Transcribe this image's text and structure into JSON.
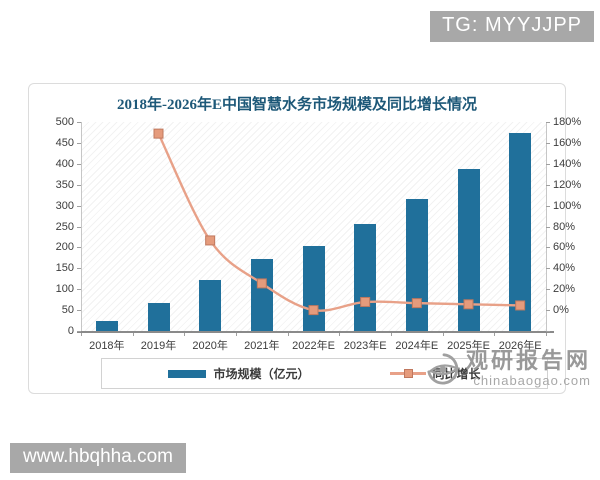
{
  "badges": {
    "tg": "TG: MYYJJPP",
    "site": "www.hbqhha.com"
  },
  "watermark": {
    "name": "观研报告网",
    "url": "chinabaogao.com"
  },
  "chart_data": {
    "type": "bar+line",
    "title": "2018年-2026年E中国智慧水务市场规模及同比增长情况",
    "categories": [
      "2018年",
      "2019年",
      "2020年",
      "2021年",
      "2022年E",
      "2023年E",
      "2024年E",
      "2025年E",
      "2026年E"
    ],
    "series": [
      {
        "name": "市场规模（亿元）",
        "type": "bar",
        "axis": "left",
        "color": "#20709b",
        "values": [
          25,
          68,
          122,
          172,
          203,
          255,
          316,
          388,
          473
        ]
      },
      {
        "name": "同比增长",
        "type": "line",
        "axis": "right",
        "color": "#e8a188",
        "unit": "%",
        "values": [
          null,
          170,
          78,
          41,
          18,
          25,
          24,
          23,
          22
        ]
      }
    ],
    "y_left": {
      "min": 0,
      "max": 500,
      "step": 50,
      "ticks": [
        "500",
        "450",
        "400",
        "350",
        "300",
        "250",
        "200",
        "150",
        "100",
        "50",
        "0"
      ]
    },
    "y_right": {
      "min": 0,
      "max": 180,
      "step": 20,
      "ticks": [
        "180%",
        "160%",
        "140%",
        "120%",
        "100%",
        "80%",
        "60%",
        "40%",
        "20%",
        "0%"
      ]
    },
    "legend_position": "bottom",
    "grid": false
  }
}
